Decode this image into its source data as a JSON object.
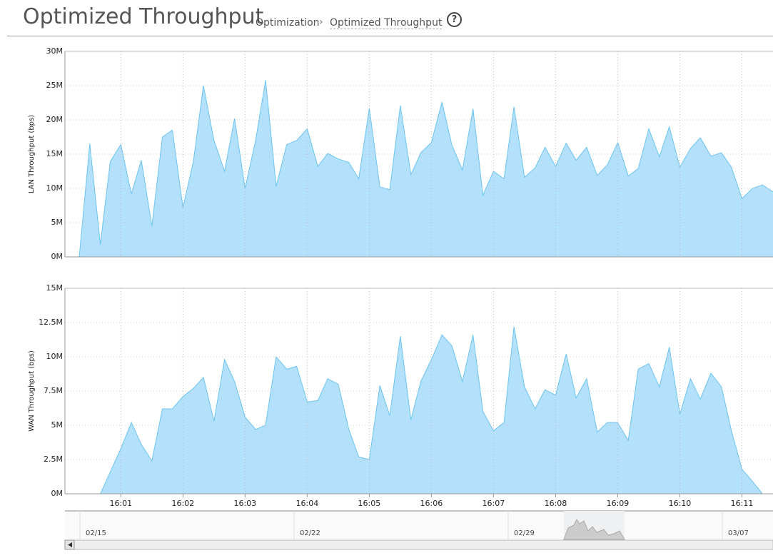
{
  "header": {
    "title": "Optimized Throughput",
    "breadcrumb": [
      "Optimization",
      "Optimized Throughput"
    ],
    "help": "?"
  },
  "chart_data": [
    {
      "type": "area",
      "y_label": "LAN Throughput (bps)",
      "color": "#b3e0fb",
      "line_color": "#6cc4f0",
      "grid": true,
      "x": [
        0.17,
        0.33,
        0.5,
        0.67,
        0.83,
        1,
        1.17,
        1.33,
        1.5,
        1.67,
        1.83,
        2,
        2.17,
        2.33,
        2.5,
        2.67,
        2.83,
        3,
        3.17,
        3.33,
        3.5,
        3.67,
        3.83,
        4,
        4.17,
        4.33,
        4.5,
        4.67,
        4.83,
        5,
        5.17,
        5.33,
        5.5,
        5.67,
        5.83,
        6,
        6.17,
        6.33,
        6.5,
        6.67,
        6.83,
        7,
        7.17,
        7.33,
        7.5,
        7.67,
        7.83,
        8,
        8.17,
        8.33,
        8.5,
        8.67,
        8.83,
        9,
        9.17,
        9.33,
        9.5,
        9.67,
        9.83,
        10,
        10.17,
        10.33,
        10.5,
        10.67,
        10.83,
        11,
        11.17,
        11.33,
        11.5
      ],
      "values": [
        0,
        0,
        16500000.0,
        1800000.0,
        13900000.0,
        16400000.0,
        9200000.0,
        14100000.0,
        4500000.0,
        17500000.0,
        18500000.0,
        7200000.0,
        14000000.0,
        25000000.0,
        17000000.0,
        12500000.0,
        20200000.0,
        10000000.0,
        17000000.0,
        25800000.0,
        10300000.0,
        16400000.0,
        17000000.0,
        18700000.0,
        13200000.0,
        15100000.0,
        14300000.0,
        13800000.0,
        11400000.0,
        21700000.0,
        10200000.0,
        9800000.0,
        22100000.0,
        12000000.0,
        15200000.0,
        16700000.0,
        22600000.0,
        16300000.0,
        12700000.0,
        21600000.0,
        9000000.0,
        12500000.0,
        11400000.0,
        21900000.0,
        11600000.0,
        13000000.0,
        16000000.0,
        13200000.0,
        16600000.0,
        14100000.0,
        16000000.0,
        11900000.0,
        13400000.0,
        16700000.0,
        11800000.0,
        12900000.0,
        18700000.0,
        14600000.0,
        19000000.0,
        13100000.0,
        15800000.0,
        17400000.0,
        14700000.0,
        15200000.0,
        13100000.0,
        8500000.0,
        10000000.0,
        10500000.0,
        9500000.0
      ],
      "xlim": [
        0.1,
        11.5
      ],
      "xticks": [
        1,
        2,
        3,
        4,
        5,
        6,
        7,
        8,
        9,
        10,
        11
      ],
      "ylim": [
        0,
        30000000.0
      ],
      "yticks": [
        {
          "value": 0,
          "label": "0M"
        },
        {
          "value": 5000000.0,
          "label": "5M"
        },
        {
          "value": 10000000.0,
          "label": "10M"
        },
        {
          "value": 15000000.0,
          "label": "15M"
        },
        {
          "value": 20000000.0,
          "label": "20M"
        },
        {
          "value": 25000000.0,
          "label": "25M"
        },
        {
          "value": 30000000.0,
          "label": "30M"
        }
      ]
    },
    {
      "type": "area",
      "y_label": "WAN Throughput (bps)",
      "color": "#b3e0fb",
      "line_color": "#6cc4f0",
      "grid": true,
      "x": [
        0.17,
        0.33,
        0.5,
        0.67,
        0.83,
        1,
        1.17,
        1.33,
        1.5,
        1.67,
        1.83,
        2,
        2.17,
        2.33,
        2.5,
        2.67,
        2.83,
        3,
        3.17,
        3.33,
        3.5,
        3.67,
        3.83,
        4,
        4.17,
        4.33,
        4.5,
        4.67,
        4.83,
        5,
        5.17,
        5.33,
        5.5,
        5.67,
        5.83,
        6,
        6.17,
        6.33,
        6.5,
        6.67,
        6.83,
        7,
        7.17,
        7.33,
        7.5,
        7.67,
        7.83,
        8,
        8.17,
        8.33,
        8.5,
        8.67,
        8.83,
        9,
        9.17,
        9.33,
        9.5,
        9.67,
        9.83,
        10,
        10.17,
        10.33,
        10.5,
        10.67,
        10.83,
        11,
        11.17,
        11.33,
        11.5
      ],
      "values": [
        0,
        0,
        0,
        0,
        1600000.0,
        3300000.0,
        5200000.0,
        3600000.0,
        2400000.0,
        6200000.0,
        6200000.0,
        7100000.0,
        7700000.0,
        8500000.0,
        5300000.0,
        9800000.0,
        8200000.0,
        5600000.0,
        4700000.0,
        5000000.0,
        10000000.0,
        9100000.0,
        9300000.0,
        6700000.0,
        6800000.0,
        8400000.0,
        8000000.0,
        4700000.0,
        2700000.0,
        2500000.0,
        7900000.0,
        5700000.0,
        11500000.0,
        5400000.0,
        8200000.0,
        9800000.0,
        11600000.0,
        10800000.0,
        8200000.0,
        11600000.0,
        6000000.0,
        4600000.0,
        5200000.0,
        12200000.0,
        7800000.0,
        6200000.0,
        7600000.0,
        7200000.0,
        10200000.0,
        7000000.0,
        8400000.0,
        4500000.0,
        5200000.0,
        5200000.0,
        3900000.0,
        9100000.0,
        9500000.0,
        7800000.0,
        10700000.0,
        5800000.0,
        8400000.0,
        6900000.0,
        8800000.0,
        7800000.0,
        4600000.0,
        1800000.0,
        900000.0,
        0,
        0
      ],
      "xlim": [
        0.1,
        11.5
      ],
      "xticks": [
        {
          "value": 1,
          "label": "16:01"
        },
        {
          "value": 2,
          "label": "16:02"
        },
        {
          "value": 3,
          "label": "16:03"
        },
        {
          "value": 4,
          "label": "16:04"
        },
        {
          "value": 5,
          "label": "16:05"
        },
        {
          "value": 6,
          "label": "16:06"
        },
        {
          "value": 7,
          "label": "16:07"
        },
        {
          "value": 8,
          "label": "16:08"
        },
        {
          "value": 9,
          "label": "16:09"
        },
        {
          "value": 10,
          "label": "16:10"
        },
        {
          "value": 11,
          "label": "16:11"
        }
      ],
      "ylim": [
        0,
        15000000.0
      ],
      "yticks": [
        {
          "value": 0,
          "label": "0M"
        },
        {
          "value": 2500000.0,
          "label": "2.5M"
        },
        {
          "value": 5000000.0,
          "label": "5M"
        },
        {
          "value": 7500000.0,
          "label": "7.5M"
        },
        {
          "value": 10000000.0,
          "label": "10M"
        },
        {
          "value": 12500000.0,
          "label": "12.5M"
        },
        {
          "value": 15000000.0,
          "label": "15M"
        }
      ]
    }
  ],
  "navigator": {
    "labels": [
      "02/15",
      "02/22",
      "02/29",
      "03/07"
    ]
  }
}
